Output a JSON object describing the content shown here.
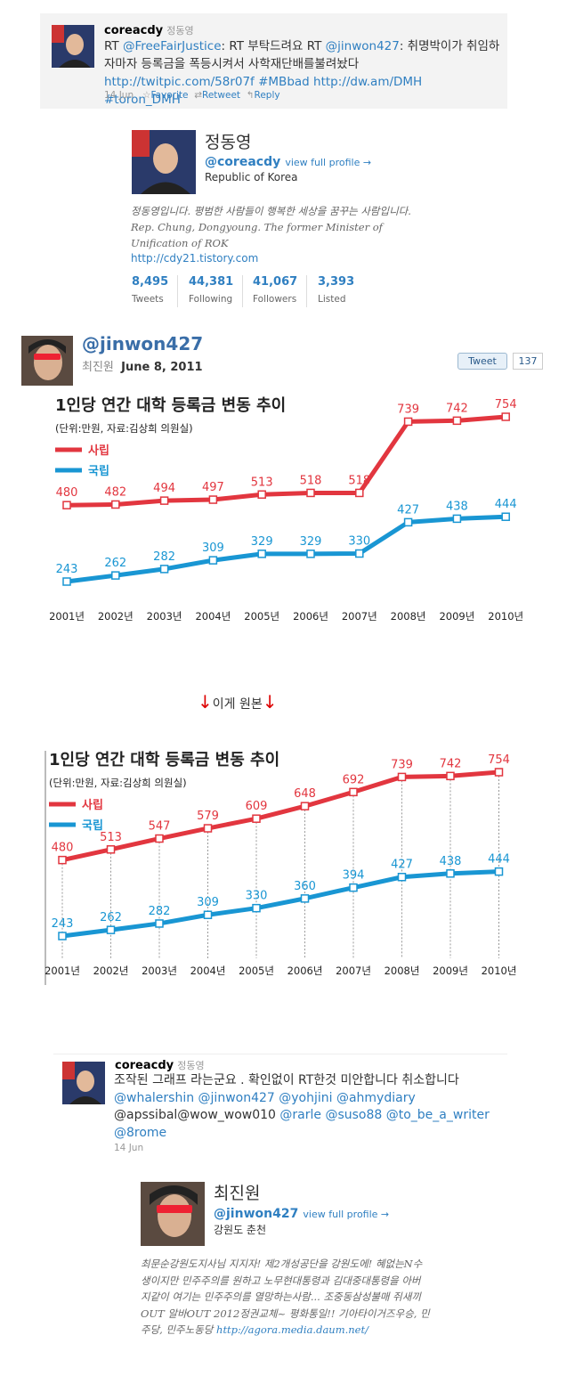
{
  "tweet1": {
    "user": "coreacdy",
    "name": "정동영",
    "text": [
      {
        "text": "RT ",
        "link": false
      },
      {
        "text": "@FreeFairJustice",
        "link": true
      },
      {
        "text": ": RT 부탁드려요 RT ",
        "link": false
      },
      {
        "text": "@jinwon427",
        "link": true
      },
      {
        "text": ": 취명박이가 취임하자마자 등록금을 폭등시켜서 사학재단배를불려놨다 ",
        "link": false
      },
      {
        "text": "http://twitpic.com/58r07f #MBbad http://dw.am/DMH #toron_DMH",
        "link": true
      }
    ],
    "date": "14 Jun",
    "actions": [
      "Favorite",
      "Retweet",
      "Reply"
    ]
  },
  "profile1": {
    "name": "정동영",
    "handle": "@coreacdy",
    "view": "view full profile →",
    "location": "Republic of Korea",
    "bio": [
      {
        "text": "정동영입니다. 평범한 사람들이 행복한 세상을 꿈꾸는 사람입니다. Rep. Chung, Dongyoung. The former Minister of Unification of ROK",
        "link": false
      }
    ],
    "url": "http://cdy21.tistory.com",
    "stats": [
      {
        "value": "8,495",
        "label": "Tweets"
      },
      {
        "value": "44,381",
        "label": "Following"
      },
      {
        "value": "41,067",
        "label": "Followers"
      },
      {
        "value": "3,393",
        "label": "Listed"
      }
    ]
  },
  "post": {
    "handle": "@jinwon427",
    "name": "최진원",
    "date": "June 8, 2011",
    "button": "Tweet",
    "count": 137
  },
  "chart_data": [
    {
      "type": "line",
      "title": "1인당 연간 대학 등록금 변동 추이",
      "subtitle": "(단위:만원, 자료:김상희 의원실)",
      "categories": [
        "2001년",
        "2002년",
        "2003년",
        "2004년",
        "2005년",
        "2006년",
        "2007년",
        "2008년",
        "2009년",
        "2010년"
      ],
      "series": [
        {
          "name": "사립",
          "color": "#e2363f",
          "values": [
            480,
            482,
            494,
            497,
            513,
            518,
            518,
            739,
            742,
            754
          ]
        },
        {
          "name": "국립",
          "color": "#1996d3",
          "values": [
            243,
            262,
            282,
            309,
            329,
            329,
            330,
            427,
            438,
            444
          ]
        }
      ]
    },
    {
      "type": "line",
      "title": "1인당 연간 대학 등록금 변동 추이",
      "subtitle": "(단위:만원, 자료:김상희 의원실)",
      "categories": [
        "2001년",
        "2002년",
        "2003년",
        "2004년",
        "2005년",
        "2006년",
        "2007년",
        "2008년",
        "2009년",
        "2010년"
      ],
      "series": [
        {
          "name": "사립",
          "color": "#e2363f",
          "values": [
            480,
            513,
            547,
            579,
            609,
            648,
            692,
            739,
            742,
            754
          ]
        },
        {
          "name": "국립",
          "color": "#1996d3",
          "values": [
            243,
            262,
            282,
            309,
            330,
            360,
            394,
            427,
            438,
            444
          ]
        }
      ]
    }
  ],
  "caption": "이게 원본",
  "tweet2": {
    "user": "coreacdy",
    "name": "정동영",
    "text": [
      {
        "text": "조작된 그래프 라는군요 . 확인없이 RT한것 미안합니다 취소합니다 ",
        "link": false
      },
      {
        "text": "@whalershin @jinwon427 @yohjini @ahmydiary ",
        "link": true
      },
      {
        "text": "@apssibal@wow_wow010 ",
        "link": false
      },
      {
        "text": "@rarle @suso88 @to_be_a_writer @8rome",
        "link": true
      }
    ],
    "date": "14 Jun"
  },
  "profile2": {
    "name": "최진원",
    "handle": "@jinwon427",
    "view": "view full profile →",
    "location": "강원도 춘천",
    "bio": [
      {
        "text": "최문순강원도지사님 지지자! 제2개성공단을 강원도에! 혜없는N수생이지만 민주주의를 원하고 노무현대통령과 김대중대통령을 아버지같이 여기는 민주주의를 열망하는사람... 조중동삼성불매 쥐새끼OUT 알바OUT 2012정권교체~ 평화통일!! 기아타이거즈우승, 민주당, 민주노동당 ",
        "link": false
      },
      {
        "text": "http://agora.media.daum.net/",
        "link": true
      }
    ]
  }
}
